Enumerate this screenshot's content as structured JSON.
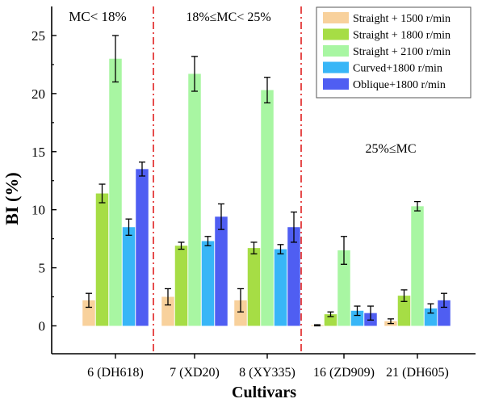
{
  "chart_data": {
    "type": "bar",
    "title": "",
    "xlabel": "Cultivars",
    "ylabel": "BI (%)",
    "ylim": [
      -2.4,
      27.5
    ],
    "yticks": [
      0,
      5,
      10,
      15,
      20,
      25
    ],
    "categories": [
      "6 (DH618)",
      "7 (XD20)",
      "8 (XY335)",
      "16 (ZD909)",
      "21 (DH605)"
    ],
    "series": [
      {
        "name": "Straight + 1500 r/min",
        "color": "#f8d19c",
        "values": [
          2.2,
          2.5,
          2.2,
          0.05,
          0.4
        ],
        "errors": [
          0.6,
          0.7,
          1.0,
          0.05,
          0.2
        ]
      },
      {
        "name": "Straight + 1800 r/min",
        "color": "#a6dd45",
        "values": [
          11.4,
          6.9,
          6.7,
          1.0,
          2.6
        ],
        "errors": [
          0.8,
          0.3,
          0.5,
          0.2,
          0.5
        ]
      },
      {
        "name": "Straight + 2100 r/min",
        "color": "#a8f6a2",
        "values": [
          23.0,
          21.7,
          20.3,
          6.5,
          10.3
        ],
        "errors": [
          2.0,
          1.5,
          1.1,
          1.2,
          0.4
        ]
      },
      {
        "name": "Curved+1800 r/min",
        "color": "#38b6f7",
        "values": [
          8.5,
          7.3,
          6.6,
          1.3,
          1.5
        ],
        "errors": [
          0.7,
          0.4,
          0.4,
          0.4,
          0.4
        ]
      },
      {
        "name": "Oblique+1800 r/min",
        "color": "#4f5ef2",
        "values": [
          13.5,
          9.4,
          8.5,
          1.1,
          2.2
        ],
        "errors": [
          0.6,
          1.1,
          1.3,
          0.6,
          0.6
        ]
      }
    ],
    "region_labels": [
      "MC< 18%",
      "18%≤MC< 25%",
      "25%≤MC"
    ],
    "divider_color": "#e02020",
    "legend_position": "top-right",
    "grid": false
  }
}
